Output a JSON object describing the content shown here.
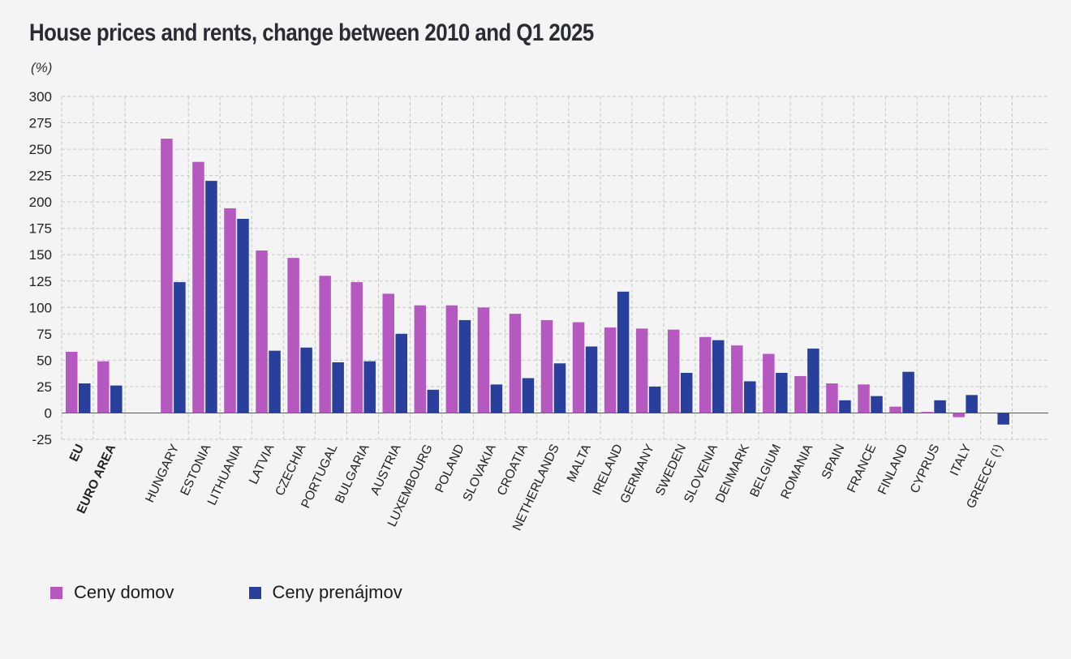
{
  "chart_data": {
    "type": "bar",
    "title": "House prices and rents, change between 2010 and Q1 2025",
    "ylabel": "(%)",
    "xlabel": "",
    "ylim": [
      -25,
      300
    ],
    "yticks": [
      -25,
      0,
      25,
      50,
      75,
      100,
      125,
      150,
      175,
      200,
      225,
      250,
      275,
      300
    ],
    "grid": true,
    "legend_position": "bottom-left",
    "categories": [
      "EU",
      "EURO AREA",
      "",
      "HUNGARY",
      "ESTONIA",
      "LITHUANIA",
      "LATVIA",
      "CZECHIA",
      "PORTUGAL",
      "BULGARIA",
      "AUSTRIA",
      "LUXEMBOURG",
      "POLAND",
      "SLOVAKIA",
      "CROATIA",
      "NETHERLANDS",
      "MALTA",
      "IRELAND",
      "GERMANY",
      "SWEDEN",
      "SLOVENIA",
      "DENMARK",
      "BELGIUM",
      "ROMANIA",
      "SPAIN",
      "FRANCE",
      "FINLAND",
      "CYPRUS",
      "ITALY",
      "GREECE (¹)"
    ],
    "bold_categories": [
      "EU",
      "EURO AREA"
    ],
    "series": [
      {
        "name": "Ceny domov",
        "color": "#b559c1",
        "values": [
          58,
          49,
          null,
          260,
          238,
          194,
          154,
          147,
          130,
          124,
          113,
          102,
          102,
          100,
          94,
          88,
          86,
          81,
          80,
          79,
          72,
          64,
          56,
          35,
          28,
          27,
          6,
          1,
          -4,
          null
        ]
      },
      {
        "name": "Ceny prenájmov",
        "color": "#28409c",
        "values": [
          28,
          26,
          null,
          124,
          220,
          184,
          59,
          62,
          48,
          49,
          75,
          22,
          88,
          27,
          33,
          47,
          63,
          115,
          25,
          38,
          69,
          30,
          38,
          61,
          12,
          16,
          39,
          12,
          17,
          -11
        ]
      }
    ]
  }
}
